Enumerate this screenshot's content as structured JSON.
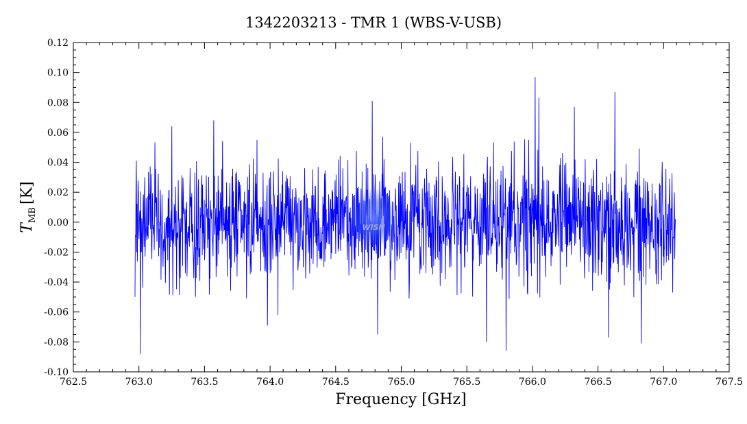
{
  "chart_data": {
    "type": "line",
    "title": "1342203213 - TMR 1 (WBS-V-USB)",
    "xlabel": "Frequency [GHz]",
    "ylabel_main": "T",
    "ylabel_sub": "MB",
    "ylabel_unit": "[K]",
    "xlim": [
      762.5,
      767.5
    ],
    "ylim": [
      -0.1,
      0.12
    ],
    "x_ticks": [
      {
        "value": 762.5,
        "label": "762.5"
      },
      {
        "value": 763.0,
        "label": "763.0"
      },
      {
        "value": 763.5,
        "label": "763.5"
      },
      {
        "value": 764.0,
        "label": "764.0"
      },
      {
        "value": 764.5,
        "label": "764.5"
      },
      {
        "value": 765.0,
        "label": "765.0"
      },
      {
        "value": 765.5,
        "label": "765.5"
      },
      {
        "value": 766.0,
        "label": "766.0"
      },
      {
        "value": 766.5,
        "label": "766.5"
      },
      {
        "value": 767.0,
        "label": "767.0"
      },
      {
        "value": 767.5,
        "label": "767.5"
      }
    ],
    "y_ticks": [
      {
        "value": -0.1,
        "label": "-0.10"
      },
      {
        "value": -0.08,
        "label": "-0.08"
      },
      {
        "value": -0.06,
        "label": "-0.06"
      },
      {
        "value": -0.04,
        "label": "-0.04"
      },
      {
        "value": -0.02,
        "label": "-0.02"
      },
      {
        "value": 0.0,
        "label": "0.00"
      },
      {
        "value": 0.02,
        "label": "0.02"
      },
      {
        "value": 0.04,
        "label": "0.04"
      },
      {
        "value": 0.06,
        "label": "0.06"
      },
      {
        "value": 0.08,
        "label": "0.08"
      },
      {
        "value": 0.1,
        "label": "0.10"
      },
      {
        "value": 0.12,
        "label": "0.12"
      }
    ],
    "grid": false,
    "series": [
      {
        "color": "#0000ff",
        "x_start": 762.97,
        "x_end": 767.09,
        "noise_rms": 0.02,
        "spikes": [
          {
            "x": 762.97,
            "y": -0.05
          },
          {
            "x": 762.98,
            "y": 0.041
          },
          {
            "x": 763.01,
            "y": -0.088
          },
          {
            "x": 763.25,
            "y": 0.064
          },
          {
            "x": 763.57,
            "y": 0.068
          },
          {
            "x": 763.98,
            "y": -0.069
          },
          {
            "x": 764.06,
            "y": -0.062
          },
          {
            "x": 764.78,
            "y": 0.081
          },
          {
            "x": 764.82,
            "y": -0.075
          },
          {
            "x": 765.06,
            "y": -0.051
          },
          {
            "x": 765.65,
            "y": -0.08
          },
          {
            "x": 765.8,
            "y": -0.086
          },
          {
            "x": 766.02,
            "y": 0.097
          },
          {
            "x": 766.05,
            "y": 0.083
          },
          {
            "x": 766.32,
            "y": 0.077
          },
          {
            "x": 766.63,
            "y": 0.087
          },
          {
            "x": 766.58,
            "y": -0.077
          },
          {
            "x": 766.83,
            "y": -0.081
          },
          {
            "x": 767.07,
            "y": -0.047
          }
        ]
      }
    ]
  },
  "watermark": {
    "text": "WISH"
  }
}
